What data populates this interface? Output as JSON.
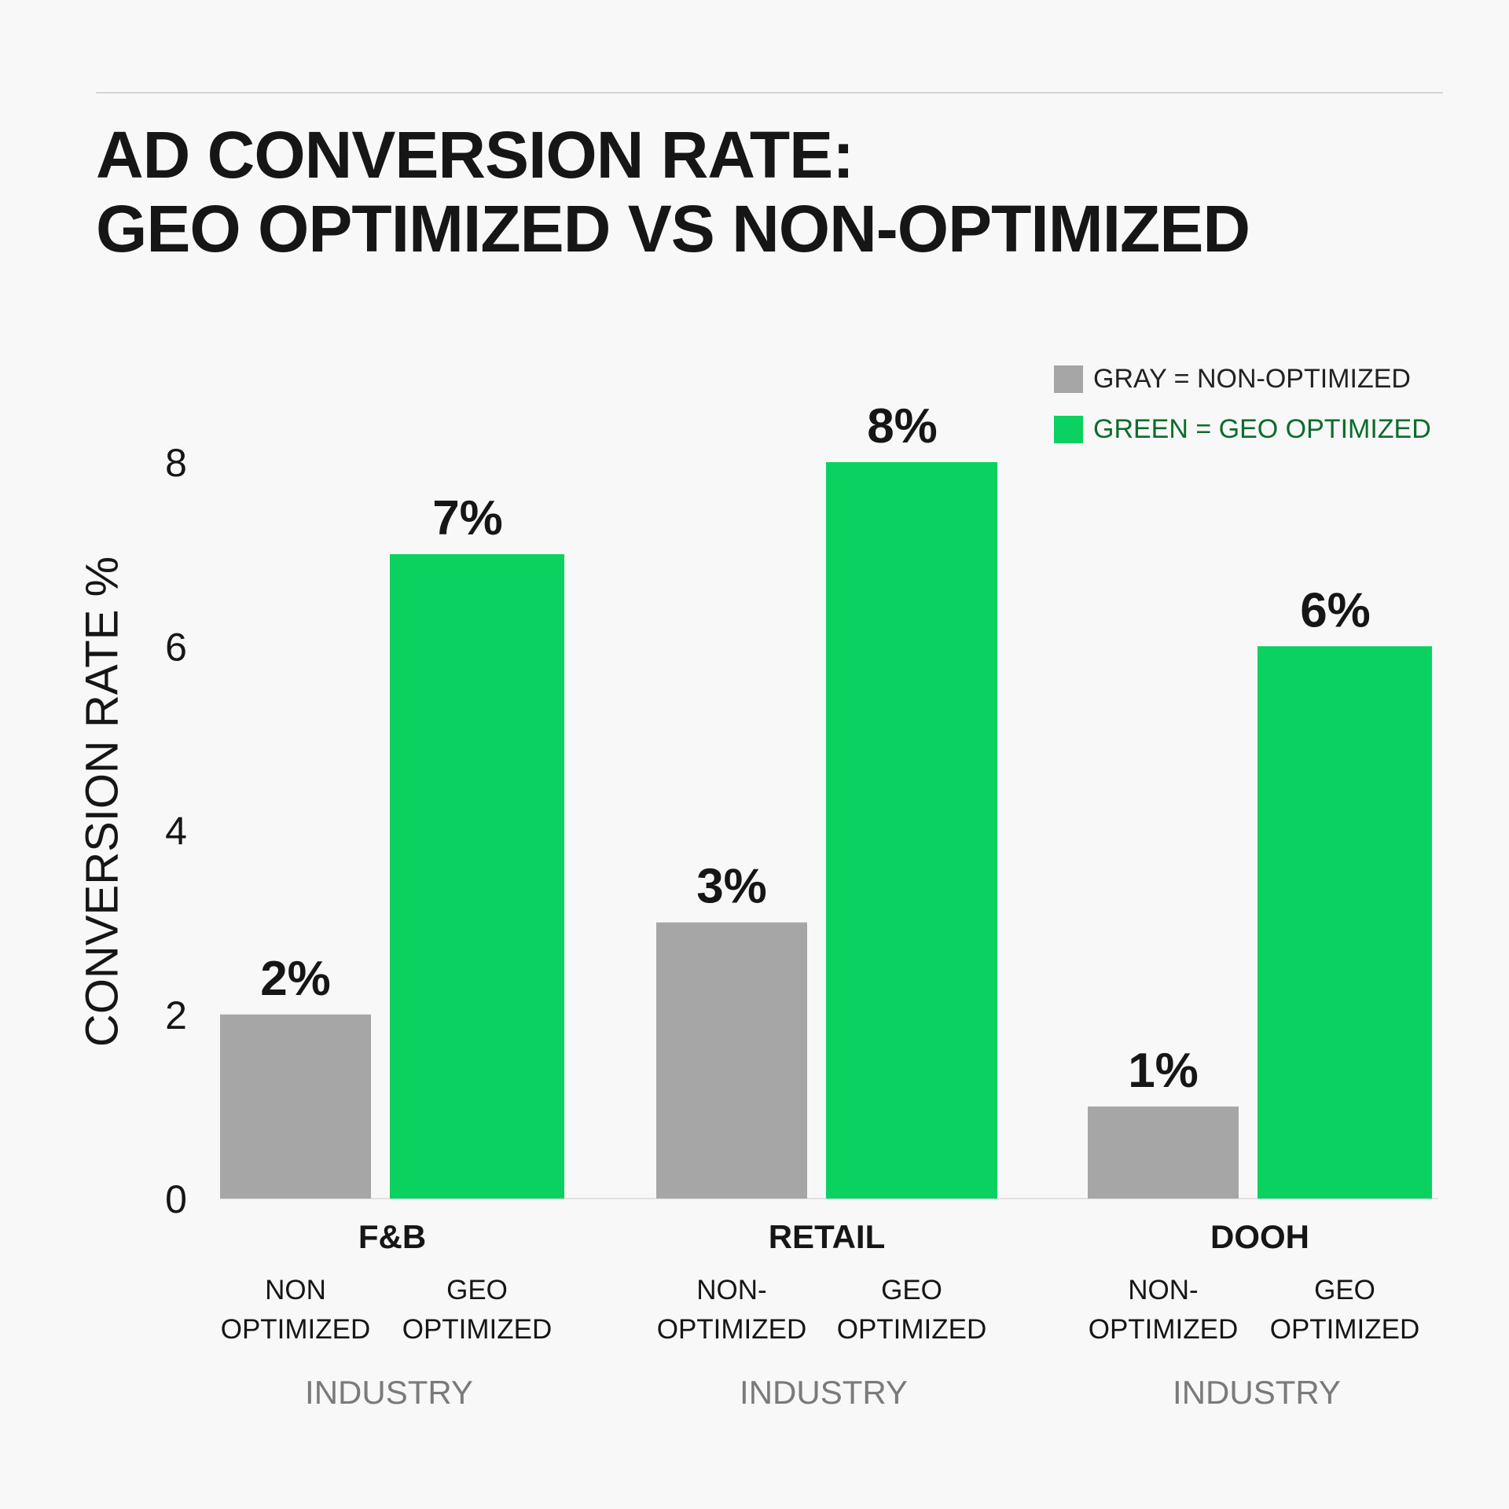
{
  "title_line1": "AD CONVERSION RATE:",
  "title_line2": "GEO OPTIMIZED VS NON-OPTIMIZED",
  "legend": [
    {
      "label": "GRAY = NON-OPTIMIZED",
      "color": "#a6a6a6",
      "text_color": "#222222"
    },
    {
      "label": "GREEN = GEO OPTIMIZED",
      "color": "#0ad15f",
      "text_color": "#0b6b2c"
    }
  ],
  "chart_data": {
    "type": "bar",
    "title": "AD CONVERSION RATE: GEO OPTIMIZED VS NON-OPTIMIZED",
    "ylabel": "CONVERSION RATE %",
    "ylim": [
      0,
      8
    ],
    "yticks": [
      0,
      2,
      4,
      6,
      8
    ],
    "grid": false,
    "legend_position": "top-right",
    "categories": [
      "F&B",
      "RETAIL",
      "DOOH"
    ],
    "industry_label": "INDUSTRY",
    "bar_labels": [
      [
        "NON",
        "OPTIMIZED",
        "GEO",
        "OPTIMIZED"
      ],
      [
        "NON-",
        "OPTIMIZED",
        "GEO",
        "OPTIMIZED"
      ],
      [
        "NON-",
        "OPTIMIZED",
        "GEO",
        "OPTIMIZED"
      ]
    ],
    "series": [
      {
        "values": [
          2,
          3,
          1
        ],
        "labels": [
          "2%",
          "3%",
          "1%"
        ],
        "color": "#a6a6a6"
      },
      {
        "values": [
          7,
          8,
          6
        ],
        "labels": [
          "7%",
          "8%",
          "6%"
        ],
        "color": "#0ad15f"
      }
    ]
  }
}
